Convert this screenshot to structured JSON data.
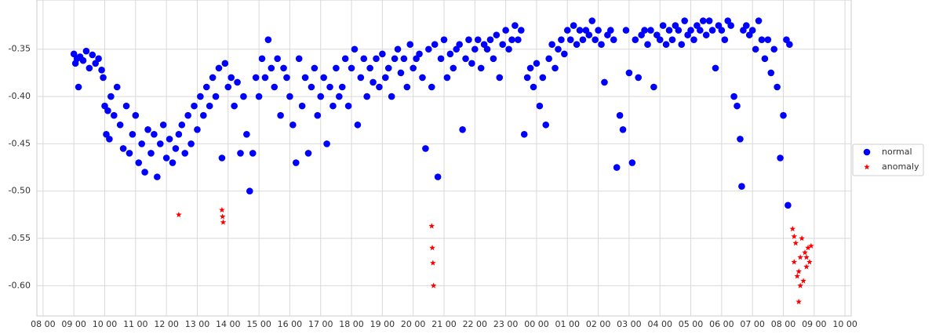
{
  "chart_data": {
    "type": "scatter",
    "series": [
      {
        "name": "normal",
        "color": "#0000ff",
        "marker": "circle",
        "x": [
          1.0,
          1.05,
          1.1,
          1.15,
          1.2,
          1.3,
          1.4,
          1.5,
          1.6,
          1.7,
          1.8,
          1.9,
          1.95,
          2.0,
          2.05,
          2.1,
          2.15,
          2.2,
          2.3,
          2.4,
          2.5,
          2.6,
          2.7,
          2.8,
          2.9,
          3.0,
          3.1,
          3.2,
          3.3,
          3.4,
          3.5,
          3.6,
          3.7,
          3.8,
          3.9,
          4.0,
          4.1,
          4.2,
          4.3,
          4.4,
          4.5,
          4.6,
          4.7,
          4.8,
          4.9,
          5.0,
          5.1,
          5.2,
          5.3,
          5.4,
          5.5,
          5.6,
          5.7,
          5.8,
          5.9,
          6.0,
          6.1,
          6.2,
          6.3,
          6.4,
          6.5,
          6.6,
          6.7,
          6.8,
          6.9,
          7.0,
          7.1,
          7.2,
          7.3,
          7.4,
          7.5,
          7.6,
          7.7,
          7.8,
          7.9,
          8.0,
          8.1,
          8.2,
          8.3,
          8.4,
          8.5,
          8.6,
          8.7,
          8.8,
          8.9,
          9.0,
          9.1,
          9.2,
          9.3,
          9.4,
          9.5,
          9.6,
          9.7,
          9.8,
          9.9,
          10.0,
          10.1,
          10.2,
          10.3,
          10.4,
          10.5,
          10.6,
          10.7,
          10.8,
          10.9,
          11.0,
          11.1,
          11.2,
          11.3,
          11.4,
          11.5,
          11.6,
          11.7,
          11.8,
          11.9,
          12.0,
          12.1,
          12.2,
          12.3,
          12.4,
          12.5,
          12.6,
          12.7,
          12.8,
          12.9,
          13.0,
          13.1,
          13.2,
          13.3,
          13.4,
          13.5,
          13.6,
          13.7,
          13.8,
          13.9,
          14.0,
          14.1,
          14.2,
          14.3,
          14.4,
          14.5,
          14.6,
          14.7,
          14.8,
          14.9,
          15.0,
          15.1,
          15.2,
          15.3,
          15.4,
          15.5,
          15.6,
          15.7,
          15.8,
          15.9,
          16.0,
          16.1,
          16.2,
          16.3,
          16.4,
          16.5,
          16.6,
          16.7,
          16.8,
          16.9,
          17.0,
          17.1,
          17.2,
          17.3,
          17.4,
          17.5,
          17.6,
          17.7,
          17.8,
          17.9,
          18.0,
          18.1,
          18.2,
          18.3,
          18.4,
          18.5,
          18.6,
          18.7,
          18.8,
          18.9,
          19.0,
          19.1,
          19.2,
          19.3,
          19.4,
          19.5,
          19.6,
          19.7,
          19.8,
          19.9,
          20.0,
          20.1,
          20.2,
          20.3,
          20.4,
          20.5,
          20.6,
          20.7,
          20.8,
          20.9,
          21.0,
          21.1,
          21.2,
          21.3,
          21.4,
          21.5,
          21.6,
          21.7,
          21.8,
          21.9,
          22.0,
          22.1,
          22.2,
          22.3,
          22.4,
          22.5,
          22.6,
          22.65,
          22.7,
          22.8,
          22.9,
          23.0,
          23.1,
          23.2,
          23.3,
          23.4,
          23.5,
          23.6,
          23.7,
          23.8,
          23.9,
          24.0,
          24.1,
          24.15,
          24.2
        ],
        "values": [
          -0.355,
          -0.365,
          -0.36,
          -0.39,
          -0.358,
          -0.362,
          -0.352,
          -0.37,
          -0.356,
          -0.365,
          -0.36,
          -0.372,
          -0.38,
          -0.41,
          -0.44,
          -0.415,
          -0.445,
          -0.4,
          -0.42,
          -0.39,
          -0.43,
          -0.455,
          -0.41,
          -0.46,
          -0.44,
          -0.42,
          -0.47,
          -0.45,
          -0.48,
          -0.435,
          -0.46,
          -0.44,
          -0.485,
          -0.45,
          -0.43,
          -0.465,
          -0.445,
          -0.47,
          -0.455,
          -0.44,
          -0.43,
          -0.46,
          -0.42,
          -0.45,
          -0.41,
          -0.435,
          -0.4,
          -0.42,
          -0.39,
          -0.41,
          -0.38,
          -0.4,
          -0.37,
          -0.465,
          -0.365,
          -0.39,
          -0.38,
          -0.41,
          -0.385,
          -0.46,
          -0.4,
          -0.44,
          -0.5,
          -0.46,
          -0.38,
          -0.4,
          -0.36,
          -0.38,
          -0.34,
          -0.37,
          -0.39,
          -0.36,
          -0.42,
          -0.37,
          -0.38,
          -0.4,
          -0.43,
          -0.47,
          -0.36,
          -0.41,
          -0.38,
          -0.46,
          -0.39,
          -0.37,
          -0.42,
          -0.4,
          -0.38,
          -0.45,
          -0.39,
          -0.41,
          -0.37,
          -0.4,
          -0.39,
          -0.36,
          -0.41,
          -0.37,
          -0.35,
          -0.43,
          -0.38,
          -0.36,
          -0.4,
          -0.37,
          -0.385,
          -0.36,
          -0.39,
          -0.355,
          -0.38,
          -0.37,
          -0.4,
          -0.36,
          -0.35,
          -0.375,
          -0.36,
          -0.39,
          -0.345,
          -0.37,
          -0.36,
          -0.355,
          -0.38,
          -0.455,
          -0.35,
          -0.39,
          -0.345,
          -0.485,
          -0.36,
          -0.34,
          -0.38,
          -0.355,
          -0.37,
          -0.35,
          -0.345,
          -0.435,
          -0.36,
          -0.34,
          -0.365,
          -0.35,
          -0.34,
          -0.37,
          -0.345,
          -0.35,
          -0.34,
          -0.36,
          -0.335,
          -0.38,
          -0.345,
          -0.33,
          -0.35,
          -0.34,
          -0.325,
          -0.34,
          -0.33,
          -0.44,
          -0.38,
          -0.37,
          -0.39,
          -0.365,
          -0.41,
          -0.38,
          -0.43,
          -0.36,
          -0.345,
          -0.37,
          -0.35,
          -0.34,
          -0.355,
          -0.33,
          -0.34,
          -0.325,
          -0.345,
          -0.33,
          -0.34,
          -0.33,
          -0.335,
          -0.32,
          -0.34,
          -0.33,
          -0.345,
          -0.385,
          -0.335,
          -0.33,
          -0.34,
          -0.475,
          -0.42,
          -0.435,
          -0.33,
          -0.375,
          -0.47,
          -0.34,
          -0.38,
          -0.335,
          -0.33,
          -0.345,
          -0.33,
          -0.39,
          -0.335,
          -0.34,
          -0.325,
          -0.345,
          -0.33,
          -0.34,
          -0.325,
          -0.33,
          -0.345,
          -0.32,
          -0.335,
          -0.33,
          -0.34,
          -0.325,
          -0.33,
          -0.32,
          -0.335,
          -0.32,
          -0.33,
          -0.37,
          -0.325,
          -0.33,
          -0.34,
          -0.32,
          -0.325,
          -0.4,
          -0.41,
          -0.445,
          -0.495,
          -0.33,
          -0.325,
          -0.335,
          -0.33,
          -0.35,
          -0.32,
          -0.34,
          -0.36,
          -0.34,
          -0.375,
          -0.35,
          -0.39,
          -0.465,
          -0.42,
          -0.34,
          -0.515,
          -0.345
        ]
      },
      {
        "name": "anomaly",
        "color": "#ff0000",
        "marker": "star",
        "x": [
          4.4,
          5.8,
          5.82,
          5.84,
          12.6,
          12.62,
          12.64,
          12.66,
          24.3,
          24.35,
          24.4,
          24.45,
          24.5,
          24.55,
          24.6,
          24.65,
          24.7,
          24.75,
          24.8,
          24.85,
          24.9,
          24.35,
          24.55,
          24.75,
          24.5
        ],
        "values": [
          -0.525,
          -0.52,
          -0.527,
          -0.533,
          -0.537,
          -0.56,
          -0.576,
          -0.6,
          -0.54,
          -0.575,
          -0.555,
          -0.59,
          -0.617,
          -0.57,
          -0.55,
          -0.595,
          -0.565,
          -0.58,
          -0.56,
          -0.575,
          -0.558,
          -0.548,
          -0.6,
          -0.57,
          -0.585
        ]
      }
    ],
    "xlim": [
      -0.2,
      26.2
    ],
    "xticks": [
      {
        "value": 0,
        "label": "08 00"
      },
      {
        "value": 1,
        "label": "09 00"
      },
      {
        "value": 2,
        "label": "10 00"
      },
      {
        "value": 3,
        "label": "11 00"
      },
      {
        "value": 4,
        "label": "12 00"
      },
      {
        "value": 5,
        "label": "13 00"
      },
      {
        "value": 6,
        "label": "14 00"
      },
      {
        "value": 7,
        "label": "15 00"
      },
      {
        "value": 8,
        "label": "16 00"
      },
      {
        "value": 9,
        "label": "17 00"
      },
      {
        "value": 10,
        "label": "18 00"
      },
      {
        "value": 11,
        "label": "19 00"
      },
      {
        "value": 12,
        "label": "20 00"
      },
      {
        "value": 13,
        "label": "21 00"
      },
      {
        "value": 14,
        "label": "22 00"
      },
      {
        "value": 15,
        "label": "23 00"
      },
      {
        "value": 16,
        "label": "00 00"
      },
      {
        "value": 17,
        "label": "01 00"
      },
      {
        "value": 18,
        "label": "02 00"
      },
      {
        "value": 19,
        "label": "03 00"
      },
      {
        "value": 20,
        "label": "04 00"
      },
      {
        "value": 21,
        "label": "05 00"
      },
      {
        "value": 22,
        "label": "06 00"
      },
      {
        "value": 23,
        "label": "07 00"
      },
      {
        "value": 24,
        "label": "08 00"
      },
      {
        "value": 25,
        "label": "09 00"
      },
      {
        "value": 26,
        "label": "10 00"
      }
    ],
    "ylim": [
      -0.632,
      -0.298
    ],
    "yticks": [
      {
        "value": -0.6,
        "label": "-0.60"
      },
      -0.55,
      {
        "value": -0.5,
        "label": "-0.50"
      },
      -0.45,
      {
        "value": -0.4,
        "label": "-0.40"
      },
      -0.35
    ],
    "grid": true,
    "legend": "right"
  }
}
